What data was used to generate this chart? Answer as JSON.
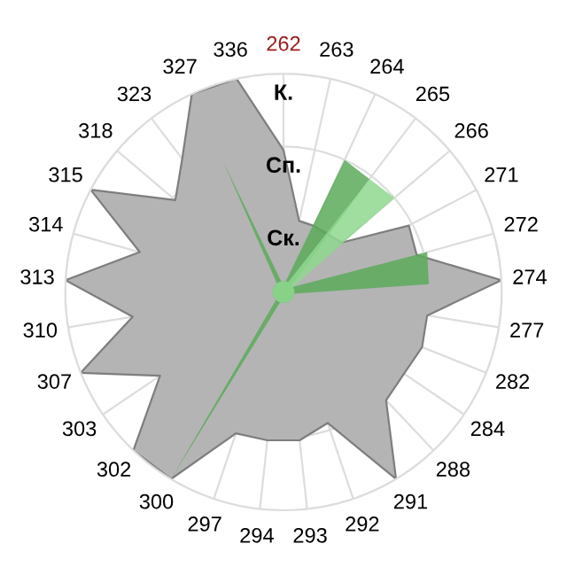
{
  "chart_data": {
    "type": "radar",
    "categories": [
      "262",
      "263",
      "264",
      "265",
      "266",
      "271",
      "272",
      "274",
      "277",
      "282",
      "284",
      "288",
      "291",
      "292",
      "293",
      "294",
      "297",
      "300",
      "302",
      "303",
      "307",
      "310",
      "313",
      "314",
      "315",
      "318",
      "323",
      "327",
      "336"
    ],
    "ylim": [
      0,
      3
    ],
    "yticks": [
      {
        "value": 1,
        "label": "Ск."
      },
      {
        "value": 2,
        "label": "Сп."
      },
      {
        "value": 3,
        "label": "К."
      }
    ],
    "grid": true,
    "series": [
      {
        "color": "#b4b4b4",
        "values": [
          1.95,
          1.0,
          1.0,
          1.0,
          1.05,
          1.95,
          1.9,
          3.0,
          2.0,
          2.05,
          2.0,
          2.05,
          3.0,
          1.9,
          2.05,
          2.05,
          2.05,
          3.0,
          3.0,
          2.05,
          3.0,
          2.1,
          3.0,
          2.05,
          3.0,
          1.95,
          2.3,
          3.0,
          3.0
        ]
      },
      {
        "color": "#5aaa5a",
        "values": [
          0.15,
          0.15,
          2.0,
          1.95,
          0.15,
          0.15,
          2.05,
          2.0,
          0.15,
          0.15,
          0.15,
          0.15,
          0.15,
          0.15,
          0.15,
          0.15,
          0.15,
          3.0,
          0.15,
          0.15,
          0.15,
          0.15,
          0.15,
          0.15,
          0.15,
          0.15,
          0.15,
          2.0,
          0.15
        ]
      },
      {
        "color": "#8ed88e",
        "values": [
          0.15,
          0.15,
          0.15,
          1.95,
          2.0,
          0.15,
          0.15,
          0.15,
          0.15,
          0.15,
          0.15,
          0.15,
          0.15,
          0.15,
          0.15,
          0.15,
          0.15,
          0.15,
          0.15,
          0.15,
          0.15,
          0.15,
          0.15,
          0.15,
          0.15,
          0.15,
          0.15,
          0.15,
          0.15
        ]
      }
    ]
  }
}
